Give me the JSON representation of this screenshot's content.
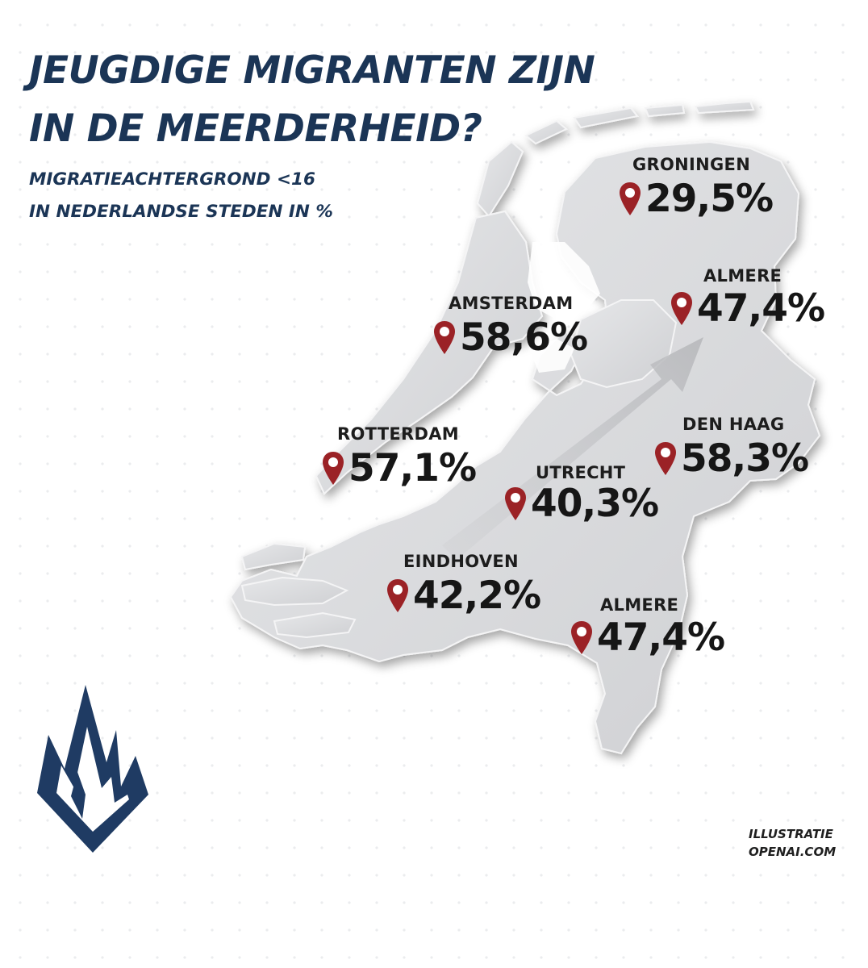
{
  "title": {
    "line1": "JEUGDIGE MIGRANTEN ZIJN",
    "line2": "IN DE MEERDERHEID?"
  },
  "subtitle": {
    "line1": "MIGRATIEACHTERGROND <16",
    "line2": "IN NEDERLANDSE STEDEN IN %"
  },
  "cities": [
    {
      "label": "GRONINGEN",
      "value": "29,5%"
    },
    {
      "label": "ALMERE",
      "value": "47,4%"
    },
    {
      "label": "AMSTERDAM",
      "value": "58,6%"
    },
    {
      "label": "ROTTERDAM",
      "value": "57,1%"
    },
    {
      "label": "DEN HAAG",
      "value": "58,3%"
    },
    {
      "label": "UTRECHT",
      "value": "40,3%"
    },
    {
      "label": "EINDHOVEN",
      "value": "42,2%"
    },
    {
      "label": "ALMERE",
      "value": "47,4%"
    }
  ],
  "credit": {
    "line1": "ILLUSTRATIE",
    "line2": "OPENAI.COM"
  },
  "colors": {
    "title": "#1b3556",
    "pin": "#9b2226",
    "map_fill": "#d9dadc",
    "logo": "#1f3b63"
  },
  "icons": {
    "pin": "map-pin-icon",
    "logo": "flame-logo"
  }
}
